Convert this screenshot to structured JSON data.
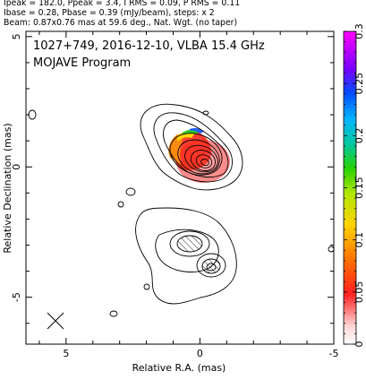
{
  "header": {
    "line1": "Ipeak = 182.0, Ppeak = 3.4, I RMS = 0.09, P RMS = 0.11",
    "line2": "Ibase = 0.28, Pbase = 0.39 (mJy/beam), steps: x 2",
    "line3": "Beam: 0.87x0.76 mas at 59.6 deg., Nat. Wgt. (no taper)"
  },
  "panel": {
    "title": "1027+749, 2016-12-10, VLBA 15.4 GHz",
    "subtitle": "MOJAVE Program"
  },
  "chart_data": {
    "type": "heatmap",
    "title": "1027+749, 2016-12-10, VLBA 15.4 GHz",
    "xlabel": "Relative R.A. (mas)",
    "ylabel": "Relative Declination (mas)",
    "xlim": [
      6.5,
      -5.0
    ],
    "ylim": [
      -6.8,
      5.2
    ],
    "xticks": [
      5,
      0,
      -5
    ],
    "yticks": [
      5,
      0,
      -5
    ],
    "colorbar": {
      "min": 0,
      "max": 0.3,
      "ticks": [
        0,
        0.05,
        0.1,
        0.15,
        0.2,
        0.25,
        0.3
      ],
      "tick_labels": [
        "0",
        "0.05",
        "0.1",
        "0.15",
        "0.2",
        "0.25",
        "0.3"
      ]
    },
    "beam": {
      "major_mas": 0.87,
      "minor_mas": 0.76,
      "pa_deg": 59.6
    }
  }
}
